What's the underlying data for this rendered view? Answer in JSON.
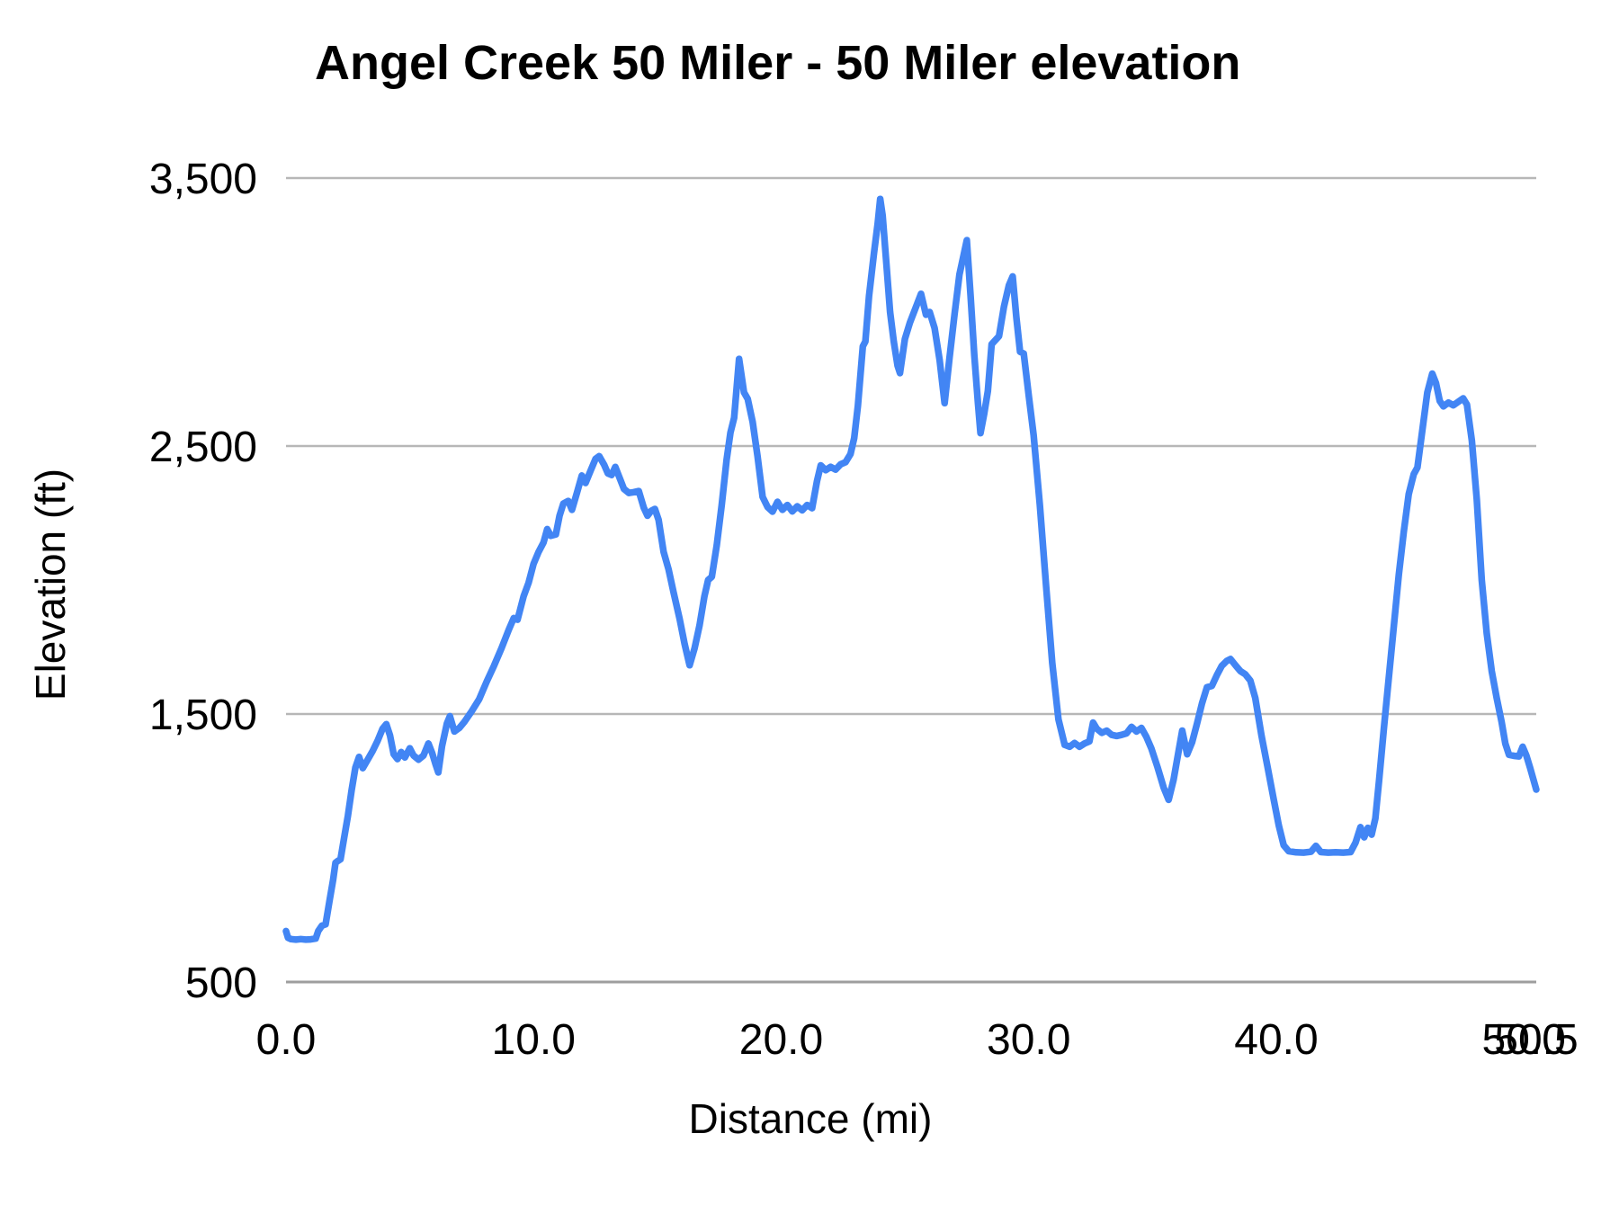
{
  "chart_data": {
    "type": "line",
    "title": "Angel Creek 50 Miler - 50 Miler elevation",
    "xlabel": "Distance (mi)",
    "ylabel": "Elevation (ft)",
    "x_range": [
      0,
      50.5
    ],
    "y_range": [
      500,
      3500
    ],
    "grid": "horizontal gridlines only",
    "legend_position": "none",
    "colors": {
      "line": "#4285f4",
      "gridline": "#b7b7b7",
      "axis_line": "#9e9e9e",
      "text": "#000000"
    },
    "y_ticks": [
      {
        "v": 500,
        "label": "500"
      },
      {
        "v": 1500,
        "label": "1,500"
      },
      {
        "v": 2500,
        "label": "2,500"
      },
      {
        "v": 3500,
        "label": "3,500"
      }
    ],
    "x_ticks": [
      {
        "v": 0,
        "label": "0.0"
      },
      {
        "v": 10,
        "label": "10.0"
      },
      {
        "v": 20,
        "label": "20.0"
      },
      {
        "v": 30,
        "label": "30.0"
      },
      {
        "v": 40,
        "label": "40.0"
      },
      {
        "v": 50,
        "label": "50.0"
      },
      {
        "v": 50.5,
        "label": "50.5"
      }
    ],
    "series": [
      {
        "name": "50 Miler elevation",
        "color": "#4285f4",
        "points": [
          [
            0.0,
            690
          ],
          [
            0.08,
            665
          ],
          [
            0.2,
            660
          ],
          [
            0.4,
            658
          ],
          [
            0.6,
            660
          ],
          [
            0.8,
            658
          ],
          [
            1.0,
            659
          ],
          [
            1.2,
            662
          ],
          [
            1.3,
            690
          ],
          [
            1.45,
            710
          ],
          [
            1.6,
            715
          ],
          [
            1.75,
            800
          ],
          [
            1.9,
            880
          ],
          [
            2.0,
            945
          ],
          [
            2.1,
            952
          ],
          [
            2.2,
            958
          ],
          [
            2.35,
            1040
          ],
          [
            2.5,
            1120
          ],
          [
            2.65,
            1215
          ],
          [
            2.8,
            1300
          ],
          [
            2.95,
            1340
          ],
          [
            3.1,
            1298
          ],
          [
            3.3,
            1330
          ],
          [
            3.5,
            1362
          ],
          [
            3.7,
            1400
          ],
          [
            3.9,
            1445
          ],
          [
            4.05,
            1462
          ],
          [
            4.2,
            1420
          ],
          [
            4.35,
            1350
          ],
          [
            4.5,
            1332
          ],
          [
            4.65,
            1358
          ],
          [
            4.8,
            1338
          ],
          [
            5.0,
            1372
          ],
          [
            5.15,
            1345
          ],
          [
            5.35,
            1330
          ],
          [
            5.55,
            1345
          ],
          [
            5.75,
            1390
          ],
          [
            5.9,
            1355
          ],
          [
            6.05,
            1310
          ],
          [
            6.15,
            1282
          ],
          [
            6.3,
            1380
          ],
          [
            6.5,
            1465
          ],
          [
            6.62,
            1492
          ],
          [
            6.8,
            1435
          ],
          [
            7.0,
            1448
          ],
          [
            7.2,
            1470
          ],
          [
            7.5,
            1510
          ],
          [
            7.8,
            1555
          ],
          [
            8.1,
            1620
          ],
          [
            8.4,
            1680
          ],
          [
            8.7,
            1745
          ],
          [
            9.0,
            1815
          ],
          [
            9.2,
            1858
          ],
          [
            9.35,
            1852
          ],
          [
            9.6,
            1940
          ],
          [
            9.8,
            1990
          ],
          [
            10.0,
            2060
          ],
          [
            10.2,
            2105
          ],
          [
            10.4,
            2140
          ],
          [
            10.55,
            2190
          ],
          [
            10.7,
            2165
          ],
          [
            10.9,
            2170
          ],
          [
            11.05,
            2240
          ],
          [
            11.2,
            2285
          ],
          [
            11.4,
            2295
          ],
          [
            11.55,
            2262
          ],
          [
            11.75,
            2325
          ],
          [
            11.95,
            2390
          ],
          [
            12.1,
            2362
          ],
          [
            12.3,
            2408
          ],
          [
            12.5,
            2452
          ],
          [
            12.65,
            2462
          ],
          [
            12.85,
            2430
          ],
          [
            13.0,
            2398
          ],
          [
            13.15,
            2392
          ],
          [
            13.3,
            2422
          ],
          [
            13.5,
            2375
          ],
          [
            13.65,
            2340
          ],
          [
            13.85,
            2325
          ],
          [
            14.05,
            2328
          ],
          [
            14.25,
            2332
          ],
          [
            14.45,
            2270
          ],
          [
            14.6,
            2240
          ],
          [
            14.75,
            2258
          ],
          [
            14.9,
            2265
          ],
          [
            15.05,
            2225
          ],
          [
            15.25,
            2105
          ],
          [
            15.45,
            2040
          ],
          [
            15.65,
            1955
          ],
          [
            15.9,
            1855
          ],
          [
            16.1,
            1762
          ],
          [
            16.3,
            1682
          ],
          [
            16.5,
            1745
          ],
          [
            16.7,
            1830
          ],
          [
            16.9,
            1940
          ],
          [
            17.05,
            2000
          ],
          [
            17.2,
            2012
          ],
          [
            17.4,
            2130
          ],
          [
            17.6,
            2280
          ],
          [
            17.8,
            2450
          ],
          [
            17.95,
            2550
          ],
          [
            18.1,
            2605
          ],
          [
            18.3,
            2825
          ],
          [
            18.5,
            2700
          ],
          [
            18.65,
            2676
          ],
          [
            18.85,
            2590
          ],
          [
            19.05,
            2460
          ],
          [
            19.25,
            2310
          ],
          [
            19.45,
            2272
          ],
          [
            19.65,
            2255
          ],
          [
            19.85,
            2292
          ],
          [
            20.05,
            2262
          ],
          [
            20.25,
            2280
          ],
          [
            20.45,
            2256
          ],
          [
            20.65,
            2275
          ],
          [
            20.85,
            2260
          ],
          [
            21.05,
            2280
          ],
          [
            21.25,
            2268
          ],
          [
            21.45,
            2370
          ],
          [
            21.6,
            2428
          ],
          [
            21.8,
            2410
          ],
          [
            22.0,
            2422
          ],
          [
            22.2,
            2412
          ],
          [
            22.4,
            2432
          ],
          [
            22.6,
            2440
          ],
          [
            22.8,
            2470
          ],
          [
            22.95,
            2530
          ],
          [
            23.1,
            2650
          ],
          [
            23.3,
            2872
          ],
          [
            23.4,
            2890
          ],
          [
            23.55,
            3060
          ],
          [
            23.75,
            3220
          ],
          [
            23.9,
            3330
          ],
          [
            24.0,
            3422
          ],
          [
            24.1,
            3360
          ],
          [
            24.25,
            3180
          ],
          [
            24.4,
            3000
          ],
          [
            24.55,
            2890
          ],
          [
            24.7,
            2800
          ],
          [
            24.8,
            2772
          ],
          [
            25.0,
            2900
          ],
          [
            25.2,
            2960
          ],
          [
            25.45,
            3020
          ],
          [
            25.65,
            3068
          ],
          [
            25.85,
            2990
          ],
          [
            26.0,
            3000
          ],
          [
            26.2,
            2940
          ],
          [
            26.4,
            2820
          ],
          [
            26.6,
            2660
          ],
          [
            26.8,
            2830
          ],
          [
            27.0,
            2990
          ],
          [
            27.2,
            3140
          ],
          [
            27.5,
            3268
          ],
          [
            27.65,
            3060
          ],
          [
            27.8,
            2840
          ],
          [
            27.95,
            2660
          ],
          [
            28.05,
            2548
          ],
          [
            28.2,
            2620
          ],
          [
            28.35,
            2705
          ],
          [
            28.5,
            2880
          ],
          [
            28.65,
            2895
          ],
          [
            28.8,
            2910
          ],
          [
            29.0,
            3020
          ],
          [
            29.2,
            3100
          ],
          [
            29.35,
            3133
          ],
          [
            29.5,
            2980
          ],
          [
            29.65,
            2852
          ],
          [
            29.8,
            2845
          ],
          [
            30.0,
            2690
          ],
          [
            30.2,
            2540
          ],
          [
            30.45,
            2280
          ],
          [
            30.7,
            1980
          ],
          [
            30.95,
            1690
          ],
          [
            31.2,
            1480
          ],
          [
            31.45,
            1385
          ],
          [
            31.65,
            1378
          ],
          [
            31.85,
            1392
          ],
          [
            32.05,
            1378
          ],
          [
            32.25,
            1390
          ],
          [
            32.45,
            1398
          ],
          [
            32.6,
            1468
          ],
          [
            32.75,
            1445
          ],
          [
            32.95,
            1430
          ],
          [
            33.15,
            1438
          ],
          [
            33.35,
            1422
          ],
          [
            33.55,
            1418
          ],
          [
            33.75,
            1422
          ],
          [
            33.95,
            1428
          ],
          [
            34.15,
            1452
          ],
          [
            34.35,
            1435
          ],
          [
            34.55,
            1448
          ],
          [
            34.75,
            1415
          ],
          [
            34.95,
            1372
          ],
          [
            35.2,
            1302
          ],
          [
            35.45,
            1225
          ],
          [
            35.65,
            1180
          ],
          [
            35.85,
            1255
          ],
          [
            36.05,
            1360
          ],
          [
            36.2,
            1438
          ],
          [
            36.4,
            1350
          ],
          [
            36.6,
            1395
          ],
          [
            36.8,
            1465
          ],
          [
            37.0,
            1540
          ],
          [
            37.2,
            1600
          ],
          [
            37.4,
            1605
          ],
          [
            37.6,
            1645
          ],
          [
            37.8,
            1680
          ],
          [
            38.0,
            1698
          ],
          [
            38.15,
            1705
          ],
          [
            38.35,
            1682
          ],
          [
            38.55,
            1660
          ],
          [
            38.75,
            1648
          ],
          [
            38.95,
            1625
          ],
          [
            39.15,
            1560
          ],
          [
            39.4,
            1420
          ],
          [
            39.65,
            1300
          ],
          [
            39.9,
            1180
          ],
          [
            40.1,
            1085
          ],
          [
            40.3,
            1010
          ],
          [
            40.5,
            988
          ],
          [
            40.8,
            984
          ],
          [
            41.1,
            983
          ],
          [
            41.4,
            986
          ],
          [
            41.6,
            1008
          ],
          [
            41.8,
            985
          ],
          [
            42.1,
            983
          ],
          [
            42.4,
            984
          ],
          [
            42.7,
            983
          ],
          [
            43.0,
            985
          ],
          [
            43.2,
            1020
          ],
          [
            43.4,
            1078
          ],
          [
            43.55,
            1040
          ],
          [
            43.7,
            1075
          ],
          [
            43.85,
            1050
          ],
          [
            44.0,
            1110
          ],
          [
            44.15,
            1250
          ],
          [
            44.35,
            1450
          ],
          [
            44.55,
            1640
          ],
          [
            44.75,
            1830
          ],
          [
            44.95,
            2020
          ],
          [
            45.15,
            2180
          ],
          [
            45.35,
            2320
          ],
          [
            45.55,
            2395
          ],
          [
            45.7,
            2420
          ],
          [
            45.9,
            2560
          ],
          [
            46.1,
            2700
          ],
          [
            46.3,
            2770
          ],
          [
            46.45,
            2735
          ],
          [
            46.6,
            2668
          ],
          [
            46.75,
            2648
          ],
          [
            46.95,
            2662
          ],
          [
            47.15,
            2652
          ],
          [
            47.35,
            2665
          ],
          [
            47.55,
            2678
          ],
          [
            47.7,
            2655
          ],
          [
            47.9,
            2520
          ],
          [
            48.1,
            2300
          ],
          [
            48.3,
            2000
          ],
          [
            48.5,
            1800
          ],
          [
            48.7,
            1660
          ],
          [
            48.9,
            1560
          ],
          [
            49.1,
            1470
          ],
          [
            49.25,
            1390
          ],
          [
            49.4,
            1348
          ],
          [
            49.6,
            1344
          ],
          [
            49.8,
            1342
          ],
          [
            49.95,
            1378
          ],
          [
            50.1,
            1345
          ],
          [
            50.25,
            1300
          ],
          [
            50.5,
            1218
          ]
        ]
      }
    ]
  }
}
